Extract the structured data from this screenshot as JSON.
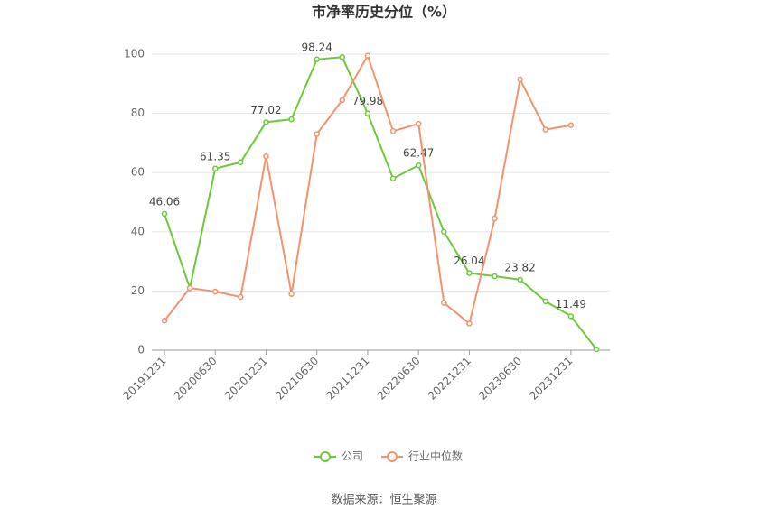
{
  "chart_data": {
    "type": "line",
    "title": "市净率历史分位（%）",
    "categories": [
      "20191231",
      null,
      "20200630",
      null,
      "20201231",
      null,
      "20210630",
      null,
      "20211231",
      null,
      "20220630",
      null,
      "20221231",
      null,
      "20230630",
      null,
      "20231231",
      null
    ],
    "series": [
      {
        "name": "公司",
        "color": "#6cc93a",
        "values": [
          46.06,
          21,
          61.35,
          63.5,
          77.02,
          78,
          98.24,
          99,
          79.98,
          58,
          62.47,
          40,
          26.04,
          25,
          23.82,
          16.5,
          11.49,
          0.3
        ]
      },
      {
        "name": "行业中位数",
        "color": "#f4926c",
        "values": [
          10,
          21,
          19.8,
          18,
          65.5,
          19,
          73,
          84.5,
          99.5,
          74,
          76.5,
          16,
          9,
          44.5,
          91.5,
          74.5,
          76,
          null
        ]
      }
    ],
    "ylim": [
      0,
      100
    ],
    "yticks": [
      0,
      20,
      40,
      60,
      80,
      100
    ],
    "grid": true,
    "source": "数据来源：恒生聚源"
  }
}
